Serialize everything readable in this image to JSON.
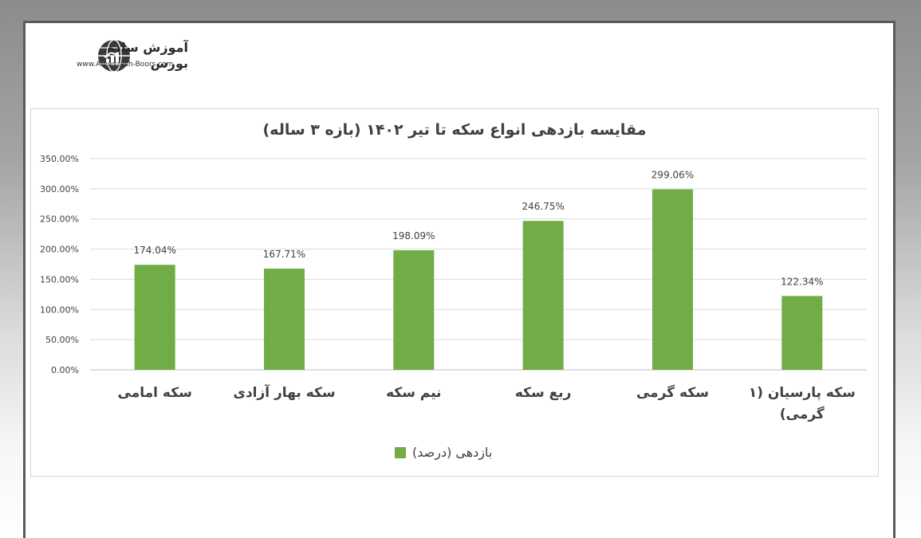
{
  "logo": {
    "name": "آموزش ساده بورس",
    "url": "www.Amoozesh-Boors.com",
    "icon": "globe-chart-icon"
  },
  "chart_data": {
    "type": "bar",
    "title": "مقایسه بازدهی انواع سکه تا تیر ۱۴۰۲ (بازه ۳ ساله)",
    "categories": [
      [
        "سکه امامی"
      ],
      [
        "سکه بهار آزادی"
      ],
      [
        "نیم سکه"
      ],
      [
        "ربع سکه"
      ],
      [
        "سکه گرمی"
      ],
      [
        "سکه پارسیان (۱",
        "گرمی)"
      ]
    ],
    "series": [
      {
        "name": "بازدهی (درصد)",
        "values": [
          174.04,
          167.71,
          198.09,
          246.75,
          299.06,
          122.34
        ],
        "labels": [
          "174.04%",
          "167.71%",
          "198.09%",
          "246.75%",
          "299.06%",
          "122.34%"
        ],
        "color": "#70ad47"
      }
    ],
    "yticks": [
      "0.00%",
      "50.00%",
      "100.00%",
      "150.00%",
      "200.00%",
      "250.00%",
      "300.00%",
      "350.00%"
    ],
    "ylim": [
      0,
      350
    ],
    "grid": true,
    "legend_position": "bottom"
  }
}
